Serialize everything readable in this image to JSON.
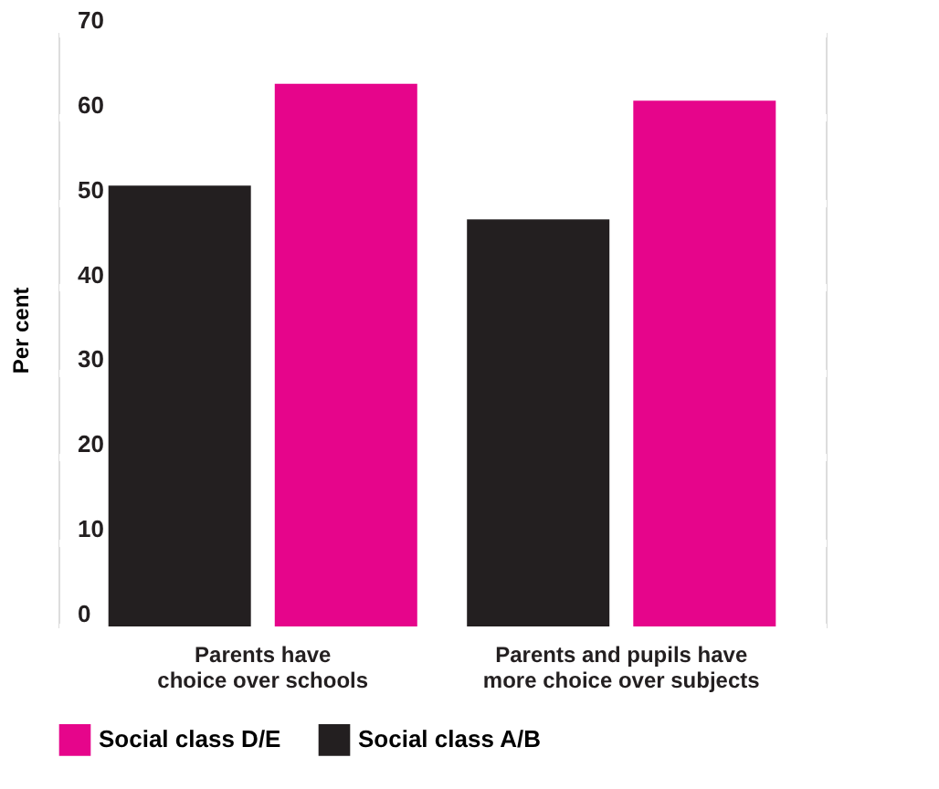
{
  "chart_data": {
    "type": "bar",
    "ylabel": "Per cent",
    "categories": [
      "Parents have\nchoice over schools",
      "Parents and pupils have\nmore choice over subjects"
    ],
    "series": [
      {
        "name": "Social class A/B",
        "color": "#231f20",
        "values": [
          52,
          48
        ]
      },
      {
        "name": "Social class D/E",
        "color": "#e6058b",
        "values": [
          64,
          62
        ]
      }
    ],
    "ylim": [
      0,
      70
    ],
    "yticks": [
      0,
      10,
      20,
      30,
      40,
      50,
      60,
      70
    ],
    "grid": "y",
    "legend": "bottom"
  }
}
